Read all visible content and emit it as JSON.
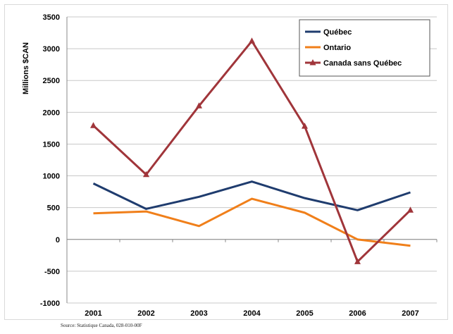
{
  "source_note": "Source: Statistique Canada, 028-010-00F",
  "chart_data": {
    "type": "line",
    "title": "",
    "xlabel": "",
    "ylabel": "Millions $CAN",
    "categories": [
      "2001",
      "2002",
      "2003",
      "2004",
      "2005",
      "2006",
      "2007"
    ],
    "ylim": [
      -1000,
      3500
    ],
    "yticks": [
      -1000,
      -500,
      0,
      500,
      1000,
      1500,
      2000,
      2500,
      3000,
      3500
    ],
    "grid": true,
    "legend_position": "top-right",
    "series": [
      {
        "name": "Québec",
        "color": "#1f3c6e",
        "marker": "none",
        "values": [
          880,
          480,
          670,
          910,
          650,
          460,
          740
        ]
      },
      {
        "name": "Ontario",
        "color": "#f07f1a",
        "marker": "none",
        "values": [
          410,
          440,
          210,
          640,
          420,
          0,
          -100
        ]
      },
      {
        "name": "Canada sans Québec",
        "color": "#a0353a",
        "marker": "triangle",
        "values": [
          1790,
          1020,
          2100,
          3120,
          1780,
          -350,
          460
        ]
      }
    ]
  }
}
